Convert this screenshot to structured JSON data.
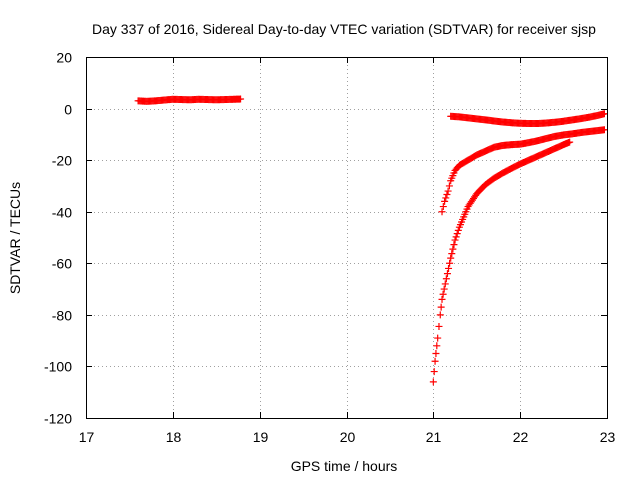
{
  "chart_data": {
    "type": "scatter",
    "title": "Day 337 of 2016, Sidereal Day-to-day VTEC variation (SDTVAR) for receiver sjsp",
    "xlabel": "GPS time / hours",
    "ylabel": "SDTVAR / TECUs",
    "xlim": [
      17,
      23
    ],
    "ylim": [
      -120,
      20
    ],
    "xticks": [
      17,
      18,
      19,
      20,
      21,
      22,
      23
    ],
    "yticks": [
      20,
      0,
      -20,
      -40,
      -60,
      -80,
      -100,
      -120
    ],
    "grid": true,
    "marker_color": "#ff0000",
    "series": [
      {
        "x": [
          17.6,
          17.7,
          17.8,
          17.9,
          18.0,
          18.1,
          18.2,
          18.3,
          18.4,
          18.5,
          18.6,
          18.7,
          18.78
        ],
        "y": [
          3.0,
          2.8,
          3.0,
          3.3,
          3.6,
          3.5,
          3.4,
          3.6,
          3.5,
          3.4,
          3.5,
          3.6,
          3.7
        ]
      },
      {
        "x": [
          21.2,
          21.3,
          21.4,
          21.5,
          21.6,
          21.7,
          21.8,
          21.9,
          22.0,
          22.1,
          22.2,
          22.3,
          22.4,
          22.5,
          22.6,
          22.7,
          22.8,
          22.9,
          22.97
        ],
        "y": [
          -3.0,
          -3.2,
          -3.6,
          -4.0,
          -4.4,
          -4.8,
          -5.2,
          -5.5,
          -5.7,
          -5.8,
          -5.8,
          -5.6,
          -5.3,
          -4.9,
          -4.4,
          -3.9,
          -3.3,
          -2.6,
          -2.0
        ]
      },
      {
        "x": [
          21.1,
          21.13,
          21.17,
          21.2,
          21.25,
          21.3,
          21.35,
          21.4,
          21.5,
          21.6,
          21.7,
          21.8,
          21.9,
          22.0,
          22.1,
          22.2,
          22.3,
          22.4,
          22.5,
          22.6,
          22.7,
          22.8,
          22.9,
          22.97
        ],
        "y": [
          -40,
          -36,
          -32,
          -28,
          -24,
          -22,
          -21,
          -20,
          -18,
          -16.5,
          -15,
          -14.3,
          -14.0,
          -13.8,
          -13.2,
          -12.5,
          -11.6,
          -10.8,
          -10.2,
          -9.8,
          -9.3,
          -8.9,
          -8.5,
          -8.2
        ]
      },
      {
        "x": [
          21.0,
          21.02,
          21.05,
          21.08,
          21.1,
          21.15,
          21.2,
          21.25,
          21.3,
          21.35,
          21.4,
          21.5,
          21.6,
          21.7,
          21.8,
          21.9,
          22.0,
          22.1,
          22.2,
          22.3,
          22.4,
          22.5,
          22.57
        ],
        "y": [
          -106,
          -98,
          -89,
          -80,
          -74,
          -66,
          -58,
          -51,
          -46,
          -42,
          -38,
          -33,
          -29.5,
          -27,
          -25,
          -23.2,
          -21.5,
          -20,
          -18.5,
          -17,
          -15.5,
          -14,
          -13
        ]
      }
    ]
  }
}
